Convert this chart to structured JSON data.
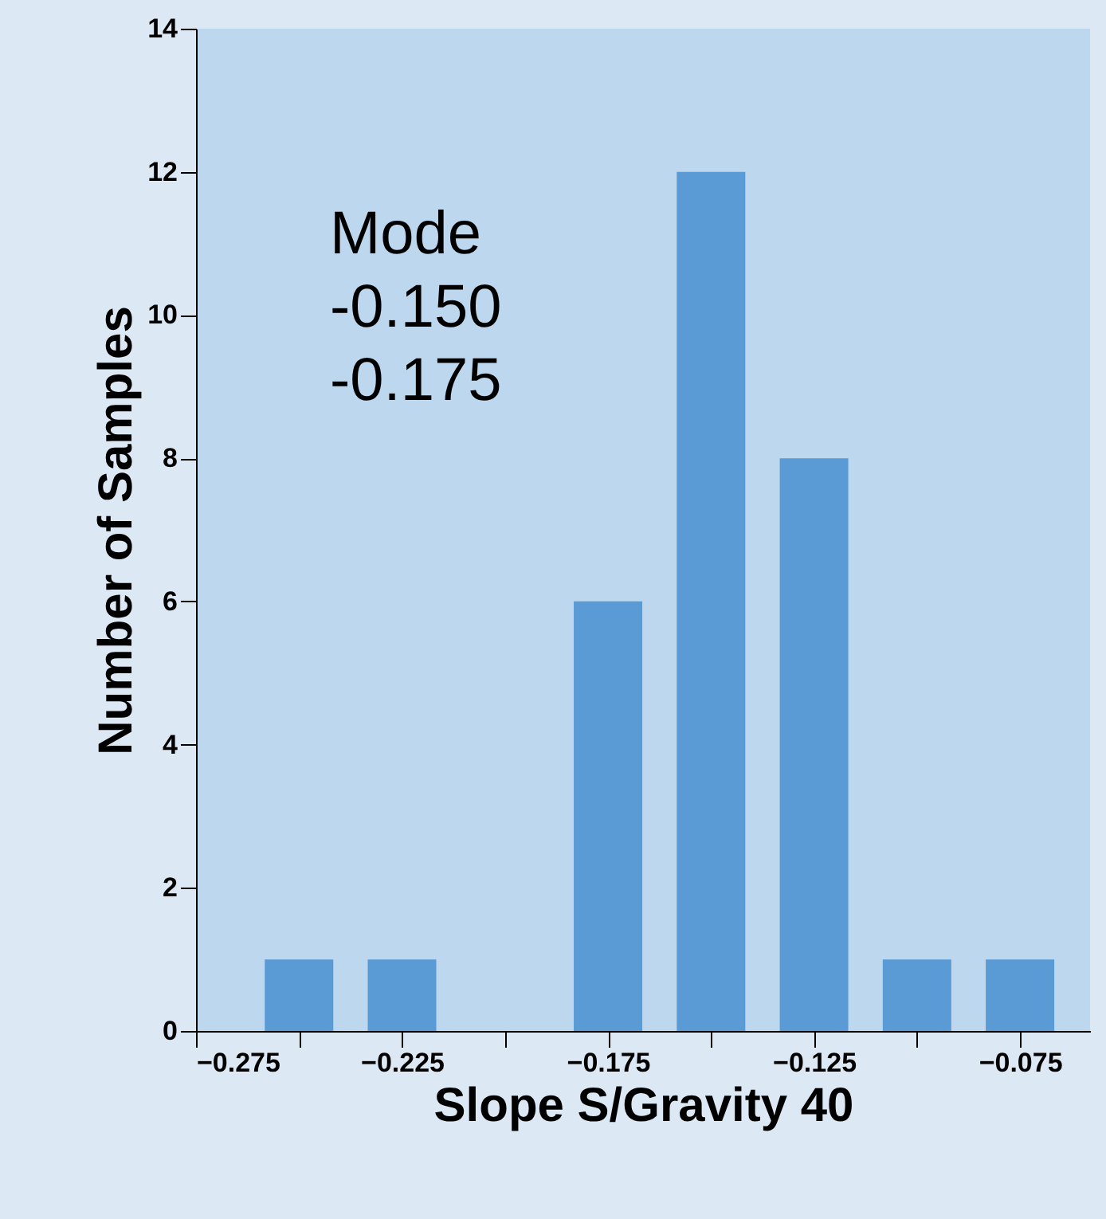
{
  "chart_data": {
    "type": "bar",
    "xlabel": "Slope S/Gravity 40",
    "ylabel": "Number of Samples",
    "x": [
      -0.25,
      -0.225,
      -0.2,
      -0.175,
      -0.15,
      -0.125,
      -0.1,
      -0.075
    ],
    "values": [
      1,
      1,
      0,
      6,
      12,
      8,
      1,
      1
    ],
    "color": "#5b9bd5",
    "xlim": [
      -0.275,
      -0.058
    ],
    "ylim": [
      0,
      14
    ],
    "xticks": [
      -0.275,
      {
        "value": -0.25,
        "label": null
      },
      -0.225,
      {
        "value": -0.2,
        "label": null
      },
      -0.175,
      {
        "value": -0.15,
        "label": null
      },
      -0.125,
      {
        "value": -0.1,
        "label": null
      },
      -0.075
    ],
    "yticks": [
      0,
      2,
      4,
      6,
      8,
      10,
      12,
      14
    ],
    "annotations": [
      "Mode",
      "-0.150",
      "-0.175"
    ],
    "grid": false
  }
}
